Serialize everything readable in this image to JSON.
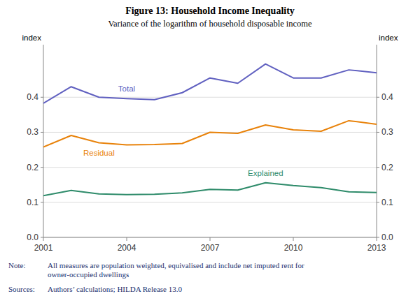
{
  "chart_data": {
    "type": "line",
    "title": "Figure 13: Household Income Inequality",
    "subtitle": "Variance of the logarithm of household disposable income",
    "x": [
      2001,
      2002,
      2003,
      2004,
      2005,
      2006,
      2007,
      2008,
      2009,
      2010,
      2011,
      2012,
      2013
    ],
    "series": [
      {
        "name": "Total",
        "color": "#6060c0",
        "values": [
          0.383,
          0.43,
          0.4,
          0.396,
          0.393,
          0.413,
          0.455,
          0.44,
          0.495,
          0.455,
          0.455,
          0.478,
          0.47
        ]
      },
      {
        "name": "Residual",
        "color": "#E8820A",
        "values": [
          0.258,
          0.291,
          0.27,
          0.264,
          0.265,
          0.268,
          0.3,
          0.297,
          0.321,
          0.307,
          0.303,
          0.333,
          0.323
        ]
      },
      {
        "name": "Explained",
        "color": "#2E8B6A",
        "values": [
          0.119,
          0.134,
          0.124,
          0.122,
          0.123,
          0.127,
          0.137,
          0.135,
          0.156,
          0.148,
          0.142,
          0.13,
          0.128
        ]
      }
    ],
    "xlim": [
      2001,
      2013
    ],
    "xticks": [
      2001,
      2004,
      2007,
      2010,
      2013
    ],
    "ylim": [
      0.0,
      0.55
    ],
    "yticks": [
      {
        "value": 0.0,
        "label": "0.0"
      },
      0.1,
      0.2,
      0.3,
      0.4
    ],
    "y2lim": [
      0.0,
      0.55
    ],
    "y2ticks": [
      {
        "value": 0.0,
        "label": "0.0"
      },
      0.1,
      0.2,
      0.3,
      0.4
    ],
    "ylabel": "index",
    "y2label": "index",
    "grid": true,
    "note": {
      "label": "Note:",
      "text": "All measures are population weighted, equivalised and include net imputed rent for\nowner-occupied dwellings"
    },
    "sources": {
      "label": "Sources:",
      "text": "Authors’ calculations; HILDA Release 13.0"
    }
  }
}
